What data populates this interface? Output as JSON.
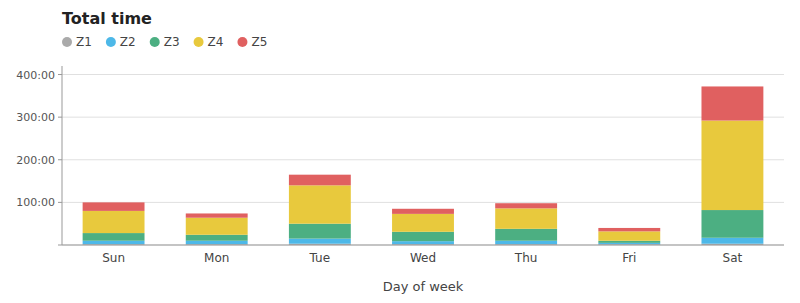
{
  "chart_data": {
    "type": "bar",
    "stacked": true,
    "title": "Total time",
    "x_label": "Day of week",
    "categories": [
      "Sun",
      "Mon",
      "Tue",
      "Wed",
      "Thu",
      "Fri",
      "Sat"
    ],
    "series": [
      {
        "name": "Z1",
        "color": "#aaaaaa",
        "values": [
          2,
          2,
          3,
          2,
          2,
          2,
          3
        ]
      },
      {
        "name": "Z2",
        "color": "#4db8e8",
        "values": [
          8,
          8,
          12,
          7,
          8,
          3,
          14
        ]
      },
      {
        "name": "Z3",
        "color": "#4caf82",
        "values": [
          18,
          14,
          35,
          22,
          28,
          5,
          65
        ]
      },
      {
        "name": "Z4",
        "color": "#e8c93d",
        "values": [
          52,
          40,
          90,
          42,
          48,
          22,
          210
        ]
      },
      {
        "name": "Z5",
        "color": "#e06060",
        "values": [
          20,
          10,
          25,
          12,
          12,
          8,
          80
        ]
      }
    ],
    "ylim": [
      0,
      420
    ],
    "yticks": [
      {
        "value": 0,
        "label": ""
      },
      {
        "value": 100,
        "label": "100:00"
      },
      {
        "value": 200,
        "label": "200:00"
      },
      {
        "value": 300,
        "label": "300:00"
      },
      {
        "value": 400,
        "label": "400:00"
      }
    ],
    "grid": true,
    "legend": "upper left"
  }
}
